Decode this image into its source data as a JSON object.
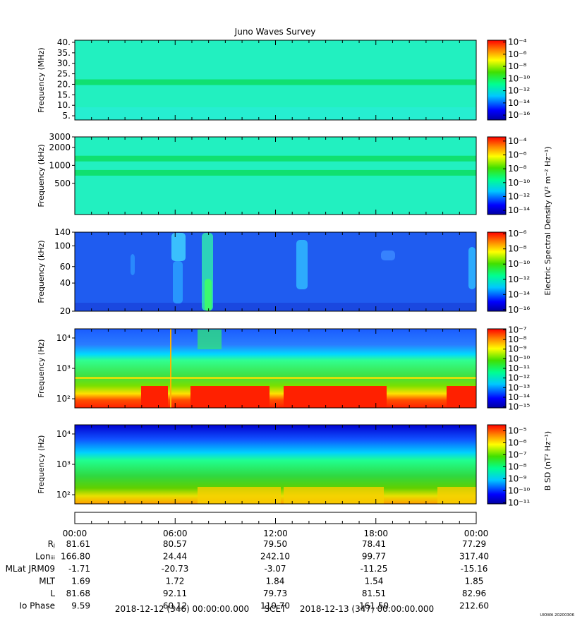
{
  "title": "Juno Waves Survey",
  "stamp": "UIOWA 20200306",
  "colors": {
    "axis": "#000000",
    "background": "#ffffff"
  },
  "chart_data": [
    {
      "type": "heatmap",
      "ylabel": "Frequency (MHz)",
      "yscale": "linear",
      "ylim": [
        3,
        41
      ],
      "yticks": [
        {
          "v": 5,
          "l": "5."
        },
        {
          "v": 10,
          "l": "10."
        },
        {
          "v": 15,
          "l": "15."
        },
        {
          "v": 20,
          "l": "20."
        },
        {
          "v": 25,
          "l": "25."
        },
        {
          "v": 30,
          "l": "30."
        },
        {
          "v": 35,
          "l": "35."
        },
        {
          "v": 40,
          "l": "40."
        }
      ],
      "bands": [
        {
          "y": 21,
          "width": 1.2
        }
      ],
      "colorbar": {
        "ticks": [
          {
            "exp": -4,
            "l": "10⁻⁴"
          },
          {
            "exp": -6,
            "l": "10⁻⁶"
          },
          {
            "exp": -8,
            "l": "10⁻⁸"
          },
          {
            "exp": -10,
            "l": "10⁻¹⁰"
          },
          {
            "exp": -12,
            "l": "10⁻¹²"
          },
          {
            "exp": -14,
            "l": "10⁻¹⁴"
          },
          {
            "exp": -16,
            "l": "10⁻¹⁶"
          }
        ],
        "range": [
          -16.8,
          -3.7
        ]
      }
    },
    {
      "type": "heatmap",
      "ylabel": "Frequency (kHz)",
      "yscale": "log",
      "ylim": [
        150,
        3000
      ],
      "yticks": [
        {
          "v": 500,
          "l": "500"
        },
        {
          "v": 1000,
          "l": "1000"
        },
        {
          "v": 2000,
          "l": "2000"
        },
        {
          "v": 3000,
          "l": "3000"
        }
      ],
      "bands": [
        {
          "y": 1300,
          "width": 0.05
        },
        {
          "y": 750,
          "width": 0.05
        }
      ],
      "colorbar": {
        "ticks": [
          {
            "exp": -4,
            "l": "10⁻⁴"
          },
          {
            "exp": -6,
            "l": "10⁻⁶"
          },
          {
            "exp": -8,
            "l": "10⁻⁸"
          },
          {
            "exp": -10,
            "l": "10⁻¹⁰"
          },
          {
            "exp": -12,
            "l": "10⁻¹²"
          },
          {
            "exp": -14,
            "l": "10⁻¹⁴"
          }
        ],
        "range": [
          -14.6,
          -3.4
        ]
      }
    },
    {
      "type": "heatmap",
      "ylabel": "Frequency (kHz)",
      "yscale": "log",
      "ylim": [
        20,
        140
      ],
      "yticks": [
        {
          "v": 20,
          "l": "20"
        },
        {
          "v": 40,
          "l": "40"
        },
        {
          "v": 60,
          "l": "60"
        },
        {
          "v": 100,
          "l": "100"
        },
        {
          "v": 140,
          "l": "140"
        }
      ],
      "colorbar": {
        "ticks": [
          {
            "exp": -6,
            "l": "10⁻⁶"
          },
          {
            "exp": -8,
            "l": "10⁻⁸"
          },
          {
            "exp": -10,
            "l": "10⁻¹⁰"
          },
          {
            "exp": -12,
            "l": "10⁻¹²"
          },
          {
            "exp": -14,
            "l": "10⁻¹⁴"
          },
          {
            "exp": -16,
            "l": "10⁻¹⁶"
          }
        ],
        "range": [
          -16.2,
          -5.8
        ]
      }
    },
    {
      "type": "heatmap",
      "ylabel": "Frequency (Hz)",
      "yscale": "log",
      "ylim": [
        50,
        20000
      ],
      "yticks": [
        {
          "v": 100,
          "l": "10²"
        },
        {
          "v": 1000,
          "l": "10³"
        },
        {
          "v": 10000,
          "l": "10⁴"
        }
      ],
      "colorbar": {
        "ticks": [
          {
            "exp": -7,
            "l": "10⁻⁷"
          },
          {
            "exp": -8,
            "l": "10⁻⁸"
          },
          {
            "exp": -9,
            "l": "10⁻⁹"
          },
          {
            "exp": -10,
            "l": "10⁻¹⁰"
          },
          {
            "exp": -11,
            "l": "10⁻¹¹"
          },
          {
            "exp": -12,
            "l": "10⁻¹²"
          },
          {
            "exp": -13,
            "l": "10⁻¹³"
          },
          {
            "exp": -14,
            "l": "10⁻¹⁴"
          },
          {
            "exp": -15,
            "l": "10⁻¹⁵"
          }
        ],
        "range": [
          -15.1,
          -6.9
        ]
      }
    },
    {
      "type": "heatmap",
      "ylabel": "Frequency (Hz)",
      "yscale": "log",
      "ylim": [
        50,
        20000
      ],
      "yticks": [
        {
          "v": 100,
          "l": "10²"
        },
        {
          "v": 1000,
          "l": "10³"
        },
        {
          "v": 10000,
          "l": "10⁴"
        }
      ],
      "colorbar": {
        "ticks": [
          {
            "exp": -5,
            "l": "10⁻⁵"
          },
          {
            "exp": -6,
            "l": "10⁻⁶"
          },
          {
            "exp": -7,
            "l": "10⁻⁷"
          },
          {
            "exp": -8,
            "l": "10⁻⁸"
          },
          {
            "exp": -9,
            "l": "10⁻⁹"
          },
          {
            "exp": -10,
            "l": "10⁻¹⁰"
          },
          {
            "exp": -11,
            "l": "10⁻¹¹"
          }
        ],
        "range": [
          -11.1,
          -4.5
        ]
      }
    }
  ],
  "colorbar_titles": {
    "electric": "Electric Spectral Density (V² m⁻² Hz⁻¹)",
    "magnetic": "B SD (nT² Hz⁻¹)"
  },
  "time_axis": {
    "ticks": [
      "00:00",
      "06:00",
      "12:00",
      "18:00",
      "00:00"
    ],
    "rows": [
      {
        "label": "Rⱼ",
        "values": [
          "81.61",
          "80.57",
          "79.50",
          "78.41",
          "77.29"
        ]
      },
      {
        "label": "Lonᵢᵢᵢ",
        "values": [
          "166.80",
          "24.44",
          "242.10",
          "99.77",
          "317.40"
        ]
      },
      {
        "label": "MLat JRM09",
        "values": [
          "-1.71",
          "-20.73",
          "-3.07",
          "-11.25",
          "-15.16"
        ]
      },
      {
        "label": "MLT",
        "values": [
          "1.69",
          "1.72",
          "1.84",
          "1.54",
          "1.85"
        ]
      },
      {
        "label": "L",
        "values": [
          "81.68",
          "92.11",
          "79.73",
          "81.51",
          "82.96"
        ]
      },
      {
        "label": "Io Phase",
        "values": [
          "9.59",
          "60.12",
          "110.70",
          "161.50",
          "212.60"
        ]
      }
    ],
    "footer": {
      "start": "2018-12-12 (346) 00:00:00.000",
      "mid": "SCET",
      "end": "2018-12-13 (347) 00:00:00.000"
    }
  }
}
